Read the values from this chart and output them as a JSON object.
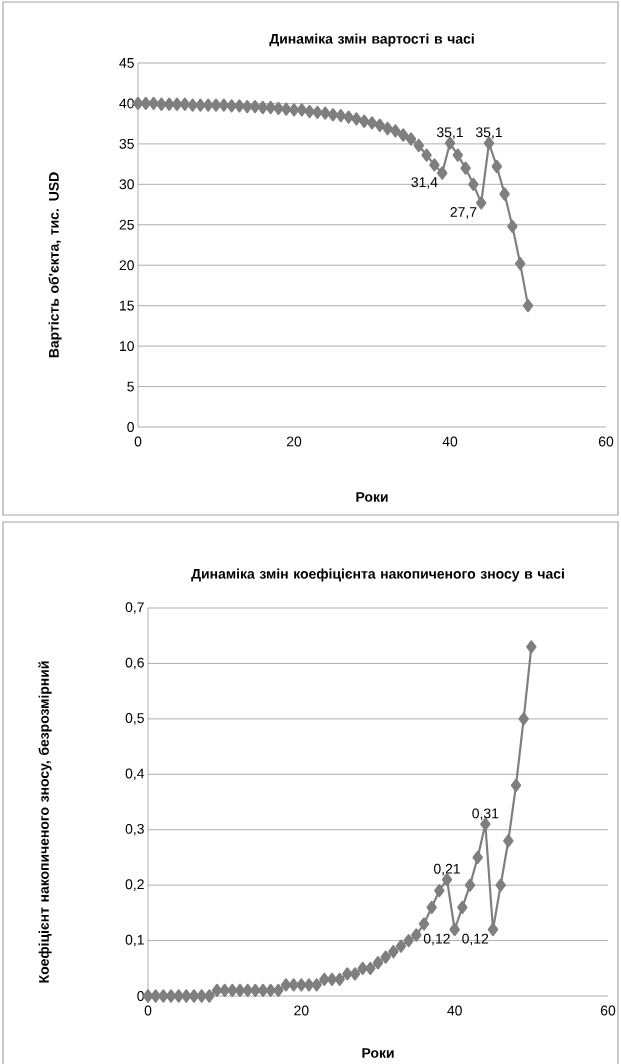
{
  "chart_data": [
    {
      "type": "line",
      "title": "Динаміка змін вартості в часі",
      "xlabel": "Роки",
      "ylabel": "Вартість об'єкта, тис. USD",
      "x": [
        0,
        1,
        2,
        3,
        4,
        5,
        6,
        7,
        8,
        9,
        10,
        11,
        12,
        13,
        14,
        15,
        16,
        17,
        18,
        19,
        20,
        21,
        22,
        23,
        24,
        25,
        26,
        27,
        28,
        29,
        30,
        31,
        32,
        33,
        34,
        35,
        36,
        37,
        38,
        39,
        40,
        41,
        42,
        43,
        44,
        45,
        46,
        47,
        48,
        49,
        50
      ],
      "values": [
        40,
        40,
        40,
        39.9,
        39.9,
        39.9,
        39.9,
        39.8,
        39.8,
        39.8,
        39.8,
        39.8,
        39.7,
        39.7,
        39.6,
        39.6,
        39.5,
        39.5,
        39.4,
        39.3,
        39.2,
        39.2,
        39,
        38.9,
        38.8,
        38.6,
        38.5,
        38.3,
        38.1,
        37.8,
        37.6,
        37.3,
        36.9,
        36.6,
        36.1,
        35.6,
        34.8,
        33.6,
        32.4,
        31.4,
        35.1,
        33.6,
        32,
        30,
        27.7,
        35.1,
        32.2,
        28.8,
        24.8,
        20.2,
        15
      ],
      "value_labels": [
        null,
        null,
        null,
        null,
        null,
        null,
        null,
        null,
        null,
        null,
        null,
        null,
        null,
        null,
        null,
        null,
        null,
        null,
        null,
        null,
        null,
        null,
        null,
        null,
        null,
        null,
        null,
        null,
        null,
        null,
        null,
        null,
        null,
        null,
        null,
        null,
        null,
        null,
        null,
        "31,4",
        "35,1",
        null,
        null,
        null,
        "27,7",
        "35,1",
        null,
        null,
        null,
        null,
        null
      ],
      "color": "#7f7f7f",
      "marker": "diamond",
      "grid": "y",
      "xlim": [
        0,
        60
      ],
      "xticks": [
        0,
        20,
        40,
        60
      ],
      "ylim": [
        0,
        45
      ],
      "yticks": [
        0,
        5,
        10,
        15,
        20,
        25,
        30,
        35,
        40,
        45
      ]
    },
    {
      "type": "line",
      "title": "Динаміка змін коефіцієнта накопиченого зносу в часі",
      "xlabel": "Роки",
      "ylabel": "Коефіцієнт накопиченого зносу, безрозмірний",
      "x": [
        0,
        1,
        2,
        3,
        4,
        5,
        6,
        7,
        8,
        9,
        10,
        11,
        12,
        13,
        14,
        15,
        16,
        17,
        18,
        19,
        20,
        21,
        22,
        23,
        24,
        25,
        26,
        27,
        28,
        29,
        30,
        31,
        32,
        33,
        34,
        35,
        36,
        37,
        38,
        39,
        40,
        41,
        42,
        43,
        44,
        45,
        46,
        47,
        48,
        49,
        50
      ],
      "values": [
        0,
        0,
        0,
        0,
        0,
        0,
        0,
        0,
        0,
        0.01,
        0.01,
        0.01,
        0.01,
        0.01,
        0.01,
        0.01,
        0.01,
        0.01,
        0.02,
        0.02,
        0.02,
        0.02,
        0.02,
        0.03,
        0.03,
        0.03,
        0.04,
        0.04,
        0.05,
        0.05,
        0.06,
        0.07,
        0.08,
        0.09,
        0.1,
        0.11,
        0.13,
        0.16,
        0.19,
        0.21,
        0.12,
        0.16,
        0.2,
        0.25,
        0.31,
        0.12,
        0.2,
        0.28,
        0.38,
        0.5,
        0.63
      ],
      "value_labels": [
        null,
        null,
        null,
        null,
        null,
        null,
        null,
        null,
        null,
        null,
        null,
        null,
        null,
        null,
        null,
        null,
        null,
        null,
        null,
        null,
        null,
        null,
        null,
        null,
        null,
        null,
        null,
        null,
        null,
        null,
        null,
        null,
        null,
        null,
        null,
        null,
        null,
        null,
        null,
        "0,21",
        "0,12",
        null,
        null,
        null,
        "0,31",
        "0,12",
        null,
        null,
        null,
        null,
        null
      ],
      "color": "#7f7f7f",
      "marker": "diamond",
      "grid": "y",
      "xlim": [
        0,
        60
      ],
      "xticks": [
        0,
        20,
        40,
        60
      ],
      "ylim": [
        0,
        0.7
      ],
      "yticks": [
        {
          "value": 0,
          "label": "0"
        },
        {
          "value": 0.1,
          "label": "0,1"
        },
        {
          "value": 0.2,
          "label": "0,2"
        },
        {
          "value": 0.3,
          "label": "0,3"
        },
        {
          "value": 0.4,
          "label": "0,4"
        },
        {
          "value": 0.5,
          "label": "0,5"
        },
        {
          "value": 0.6,
          "label": "0,6"
        },
        {
          "value": 0.7,
          "label": "0,7"
        }
      ]
    }
  ]
}
